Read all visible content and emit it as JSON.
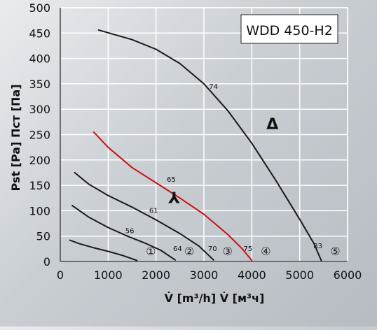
{
  "chart_data": {
    "type": "line",
    "title": "WDD 450-H2",
    "xlabel": "V̇ [m³/h]  V̇ [м³ч]",
    "ylabel": "Pst [Pa]  Пст [Па]",
    "xlim": [
      0,
      6000
    ],
    "ylim": [
      0,
      500
    ],
    "xticks": [
      0,
      1000,
      2000,
      3000,
      4000,
      5000,
      6000
    ],
    "yticks": [
      0,
      50,
      100,
      150,
      200,
      250,
      300,
      350,
      400,
      450,
      500
    ],
    "grid": true,
    "series": [
      {
        "name": "1",
        "color": "#1a1a1a",
        "points": [
          [
            200,
            42
          ],
          [
            400,
            35
          ],
          [
            700,
            27
          ],
          [
            1000,
            20
          ],
          [
            1300,
            12
          ],
          [
            1600,
            2
          ]
        ],
        "labels": []
      },
      {
        "name": "2",
        "color": "#1a1a1a",
        "points": [
          [
            250,
            110
          ],
          [
            600,
            87
          ],
          [
            1000,
            67
          ],
          [
            1400,
            50
          ],
          [
            1800,
            35
          ],
          [
            2100,
            22
          ],
          [
            2400,
            3
          ]
        ],
        "labels": [
          {
            "text": "56",
            "x": 1450,
            "y": 56
          },
          {
            "text": "64",
            "x": 2450,
            "y": 21
          }
        ]
      },
      {
        "name": "3",
        "color": "#1a1a1a",
        "points": [
          [
            300,
            175
          ],
          [
            600,
            152
          ],
          [
            1000,
            130
          ],
          [
            1500,
            107
          ],
          [
            2000,
            82
          ],
          [
            2500,
            55
          ],
          [
            2900,
            30
          ],
          [
            3200,
            3
          ]
        ],
        "labels": [
          {
            "text": "61",
            "x": 1950,
            "y": 96
          },
          {
            "text": "70",
            "x": 3180,
            "y": 21
          }
        ]
      },
      {
        "name": "4",
        "color": "#cc1111",
        "points": [
          [
            700,
            255
          ],
          [
            1000,
            225
          ],
          [
            1500,
            185
          ],
          [
            2000,
            155
          ],
          [
            2500,
            125
          ],
          [
            3000,
            93
          ],
          [
            3500,
            53
          ],
          [
            3800,
            25
          ],
          [
            4000,
            2
          ]
        ],
        "labels": [
          {
            "text": "65",
            "x": 2320,
            "y": 157
          },
          {
            "text": "75",
            "x": 3920,
            "y": 21
          }
        ]
      },
      {
        "name": "5",
        "color": "#1a1a1a",
        "points": [
          [
            800,
            456
          ],
          [
            1500,
            437
          ],
          [
            2000,
            418
          ],
          [
            2500,
            390
          ],
          [
            3000,
            350
          ],
          [
            3500,
            297
          ],
          [
            4000,
            233
          ],
          [
            4500,
            160
          ],
          [
            5000,
            83
          ],
          [
            5300,
            35
          ],
          [
            5450,
            2
          ]
        ],
        "labels": [
          {
            "text": "74",
            "x": 3200,
            "y": 340
          },
          {
            "text": "83",
            "x": 5380,
            "y": 26
          }
        ]
      }
    ],
    "curve_markers": [
      "①",
      "②",
      "③",
      "④",
      "⑤"
    ],
    "annotations": [
      {
        "text": "Δ",
        "x": 4430,
        "y": 260
      },
      {
        "text": "⅄",
        "x": 2380,
        "y": 115
      }
    ]
  }
}
